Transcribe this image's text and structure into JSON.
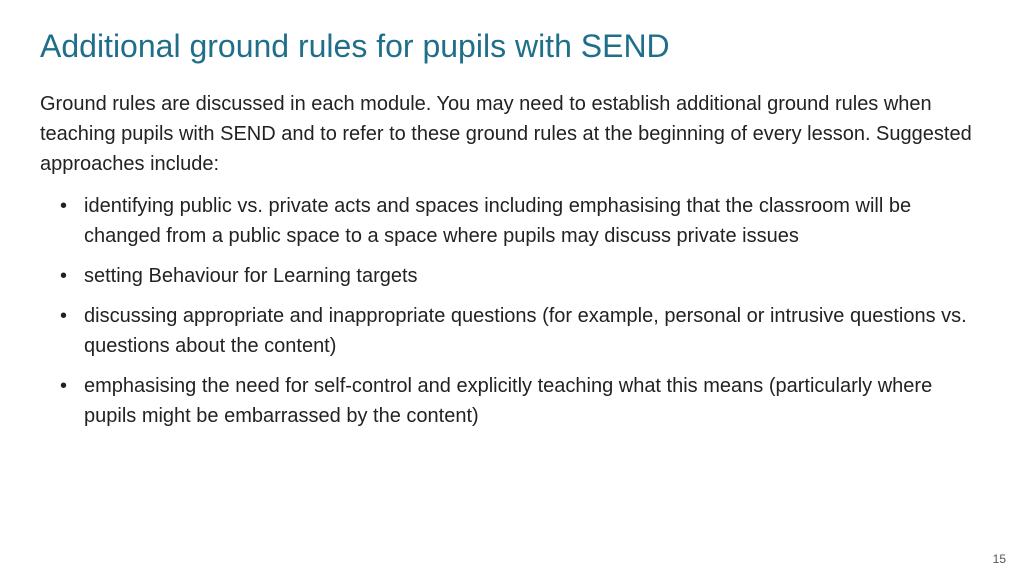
{
  "slide": {
    "title": "Additional ground rules for pupils with SEND",
    "intro": "Ground rules are discussed in each module. You may need to establish additional ground rules when teaching pupils with SEND and to refer to these ground rules at the beginning of every lesson. Suggested approaches include:",
    "bullets": [
      "identifying public vs. private acts and spaces including emphasising that the classroom will be changed from a public space to a space where pupils may discuss private issues",
      "setting Behaviour for Learning targets",
      "discussing appropriate and inappropriate questions (for example, personal or intrusive questions vs. questions about the content)",
      "emphasising the need for self-control and explicitly teaching what this means (particularly where pupils might be embarrassed by the content)"
    ],
    "page_number": "15",
    "title_color": "#1f6f8b",
    "body_color": "#222222",
    "background_color": "#ffffff",
    "title_fontsize": 32,
    "body_fontsize": 20
  }
}
